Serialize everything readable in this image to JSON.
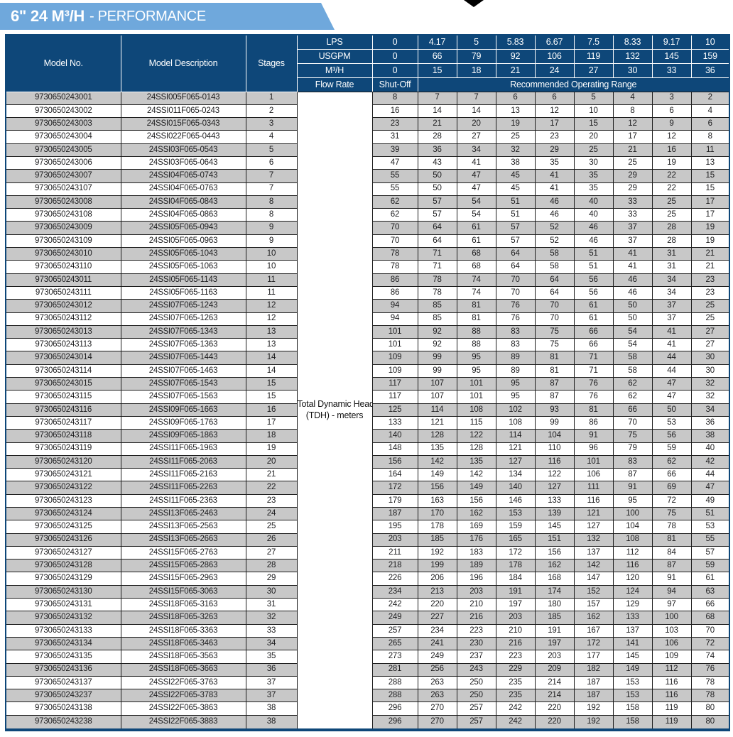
{
  "banner": {
    "title_strong": "6\" 24 M³/H",
    "title_light": "- PERFORMANCE"
  },
  "colors": {
    "navy": "#0E4779",
    "banner_blue": "#6FA8DC",
    "stripe_gray": "#C8C8C8"
  },
  "table": {
    "col_headers": {
      "model_no": "Model No.",
      "model_description": "Model Description",
      "stages": "Stages",
      "flow_rate": "Flow Rate",
      "shut_off": "Shut-Off",
      "recommended_range": "Recommended Operating Range"
    },
    "flow_rows": [
      {
        "label": "LPS",
        "values": [
          "0",
          "4.17",
          "5",
          "5.83",
          "6.67",
          "7.5",
          "8.33",
          "9.17",
          "10"
        ]
      },
      {
        "label": "USGPM",
        "values": [
          "0",
          "66",
          "79",
          "92",
          "106",
          "119",
          "132",
          "145",
          "159"
        ]
      },
      {
        "label": "M³/H",
        "values": [
          "0",
          "15",
          "18",
          "21",
          "24",
          "27",
          "30",
          "33",
          "36"
        ]
      }
    ],
    "tdh_label_line1": "Total Dynamic Head",
    "tdh_label_line2": "(TDH) - meters",
    "rows": [
      {
        "model": "9730650243001",
        "description": "24SSI005F065-0143",
        "stages": "1",
        "tdh": [
          8,
          7,
          7,
          6,
          6,
          5,
          4,
          3,
          2
        ]
      },
      {
        "model": "9730650243002",
        "description": "24SSI011F065-0243",
        "stages": "2",
        "tdh": [
          16,
          14,
          14,
          13,
          12,
          10,
          8,
          6,
          4
        ]
      },
      {
        "model": "9730650243003",
        "description": "24SSI015F065-0343",
        "stages": "3",
        "tdh": [
          23,
          21,
          20,
          19,
          17,
          15,
          12,
          9,
          6
        ]
      },
      {
        "model": "9730650243004",
        "description": "24SSI022F065-0443",
        "stages": "4",
        "tdh": [
          31,
          28,
          27,
          25,
          23,
          20,
          17,
          12,
          8
        ]
      },
      {
        "model": "9730650243005",
        "description": "24SSI03F065-0543",
        "stages": "5",
        "tdh": [
          39,
          36,
          34,
          32,
          29,
          25,
          21,
          16,
          11
        ]
      },
      {
        "model": "9730650243006",
        "description": "24SSI03F065-0643",
        "stages": "6",
        "tdh": [
          47,
          43,
          41,
          38,
          35,
          30,
          25,
          19,
          13
        ]
      },
      {
        "model": "9730650243007",
        "description": "24SSI04F065-0743",
        "stages": "7",
        "tdh": [
          55,
          50,
          47,
          45,
          41,
          35,
          29,
          22,
          15
        ]
      },
      {
        "model": "9730650243107",
        "description": "24SSI04F065-0763",
        "stages": "7",
        "tdh": [
          55,
          50,
          47,
          45,
          41,
          35,
          29,
          22,
          15
        ]
      },
      {
        "model": "9730650243008",
        "description": "24SSI04F065-0843",
        "stages": "8",
        "tdh": [
          62,
          57,
          54,
          51,
          46,
          40,
          33,
          25,
          17
        ]
      },
      {
        "model": "9730650243108",
        "description": "24SSI04F065-0863",
        "stages": "8",
        "tdh": [
          62,
          57,
          54,
          51,
          46,
          40,
          33,
          25,
          17
        ]
      },
      {
        "model": "9730650243009",
        "description": "24SSI05F065-0943",
        "stages": "9",
        "tdh": [
          70,
          64,
          61,
          57,
          52,
          46,
          37,
          28,
          19
        ]
      },
      {
        "model": "9730650243109",
        "description": "24SSI05F065-0963",
        "stages": "9",
        "tdh": [
          70,
          64,
          61,
          57,
          52,
          46,
          37,
          28,
          19
        ]
      },
      {
        "model": "9730650243010",
        "description": "24SSI05F065-1043",
        "stages": "10",
        "tdh": [
          78,
          71,
          68,
          64,
          58,
          51,
          41,
          31,
          21
        ]
      },
      {
        "model": "9730650243110",
        "description": "24SSI05F065-1063",
        "stages": "10",
        "tdh": [
          78,
          71,
          68,
          64,
          58,
          51,
          41,
          31,
          21
        ]
      },
      {
        "model": "9730650243011",
        "description": "24SSI05F065-1143",
        "stages": "11",
        "tdh": [
          86,
          78,
          74,
          70,
          64,
          56,
          46,
          34,
          23
        ]
      },
      {
        "model": "9730650243111",
        "description": "24SSI05F065-1163",
        "stages": "11",
        "tdh": [
          86,
          78,
          74,
          70,
          64,
          56,
          46,
          34,
          23
        ]
      },
      {
        "model": "9730650243012",
        "description": "24SSI07F065-1243",
        "stages": "12",
        "tdh": [
          94,
          85,
          81,
          76,
          70,
          61,
          50,
          37,
          25
        ]
      },
      {
        "model": "9730650243112",
        "description": "24SSI07F065-1263",
        "stages": "12",
        "tdh": [
          94,
          85,
          81,
          76,
          70,
          61,
          50,
          37,
          25
        ]
      },
      {
        "model": "9730650243013",
        "description": "24SSI07F065-1343",
        "stages": "13",
        "tdh": [
          101,
          92,
          88,
          83,
          75,
          66,
          54,
          41,
          27
        ]
      },
      {
        "model": "9730650243113",
        "description": "24SSI07F065-1363",
        "stages": "13",
        "tdh": [
          101,
          92,
          88,
          83,
          75,
          66,
          54,
          41,
          27
        ]
      },
      {
        "model": "9730650243014",
        "description": "24SSI07F065-1443",
        "stages": "14",
        "tdh": [
          109,
          99,
          95,
          89,
          81,
          71,
          58,
          44,
          30
        ]
      },
      {
        "model": "9730650243114",
        "description": "24SSI07F065-1463",
        "stages": "14",
        "tdh": [
          109,
          99,
          95,
          89,
          81,
          71,
          58,
          44,
          30
        ]
      },
      {
        "model": "9730650243015",
        "description": "24SSI07F065-1543",
        "stages": "15",
        "tdh": [
          117,
          107,
          101,
          95,
          87,
          76,
          62,
          47,
          32
        ]
      },
      {
        "model": "9730650243115",
        "description": "24SSI07F065-1563",
        "stages": "15",
        "tdh": [
          117,
          107,
          101,
          95,
          87,
          76,
          62,
          47,
          32
        ]
      },
      {
        "model": "9730650243116",
        "description": "24SSI09F065-1663",
        "stages": "16",
        "tdh": [
          125,
          114,
          108,
          102,
          93,
          81,
          66,
          50,
          34
        ]
      },
      {
        "model": "9730650243117",
        "description": "24SSI09F065-1763",
        "stages": "17",
        "tdh": [
          133,
          121,
          115,
          108,
          99,
          86,
          70,
          53,
          36
        ]
      },
      {
        "model": "9730650243118",
        "description": "24SSI09F065-1863",
        "stages": "18",
        "tdh": [
          140,
          128,
          122,
          114,
          104,
          91,
          75,
          56,
          38
        ]
      },
      {
        "model": "9730650243119",
        "description": "24SSI11F065-1963",
        "stages": "19",
        "tdh": [
          148,
          135,
          128,
          121,
          110,
          96,
          79,
          59,
          40
        ]
      },
      {
        "model": "9730650243120",
        "description": "24SSI11F065-2063",
        "stages": "20",
        "tdh": [
          156,
          142,
          135,
          127,
          116,
          101,
          83,
          62,
          42
        ]
      },
      {
        "model": "9730650243121",
        "description": "24SSI11F065-2163",
        "stages": "21",
        "tdh": [
          164,
          149,
          142,
          134,
          122,
          106,
          87,
          66,
          44
        ]
      },
      {
        "model": "9730650243122",
        "description": "24SSI11F065-2263",
        "stages": "22",
        "tdh": [
          172,
          156,
          149,
          140,
          127,
          111,
          91,
          69,
          47
        ]
      },
      {
        "model": "9730650243123",
        "description": "24SSI11F065-2363",
        "stages": "23",
        "tdh": [
          179,
          163,
          156,
          146,
          133,
          116,
          95,
          72,
          49
        ]
      },
      {
        "model": "9730650243124",
        "description": "24SSI13F065-2463",
        "stages": "24",
        "tdh": [
          187,
          170,
          162,
          153,
          139,
          121,
          100,
          75,
          51
        ]
      },
      {
        "model": "9730650243125",
        "description": "24SSI13F065-2563",
        "stages": "25",
        "tdh": [
          195,
          178,
          169,
          159,
          145,
          127,
          104,
          78,
          53
        ]
      },
      {
        "model": "9730650243126",
        "description": "24SSI13F065-2663",
        "stages": "26",
        "tdh": [
          203,
          185,
          176,
          165,
          151,
          132,
          108,
          81,
          55
        ]
      },
      {
        "model": "9730650243127",
        "description": "24SSI15F065-2763",
        "stages": "27",
        "tdh": [
          211,
          192,
          183,
          172,
          156,
          137,
          112,
          84,
          57
        ]
      },
      {
        "model": "9730650243128",
        "description": "24SSI15F065-2863",
        "stages": "28",
        "tdh": [
          218,
          199,
          189,
          178,
          162,
          142,
          116,
          87,
          59
        ]
      },
      {
        "model": "9730650243129",
        "description": "24SSI15F065-2963",
        "stages": "29",
        "tdh": [
          226,
          206,
          196,
          184,
          168,
          147,
          120,
          91,
          61
        ]
      },
      {
        "model": "9730650243130",
        "description": "24SSI15F065-3063",
        "stages": "30",
        "tdh": [
          234,
          213,
          203,
          191,
          174,
          152,
          124,
          94,
          63
        ]
      },
      {
        "model": "9730650243131",
        "description": "24SSI18F065-3163",
        "stages": "31",
        "tdh": [
          242,
          220,
          210,
          197,
          180,
          157,
          129,
          97,
          66
        ]
      },
      {
        "model": "9730650243132",
        "description": "24SSI18F065-3263",
        "stages": "32",
        "tdh": [
          249,
          227,
          216,
          203,
          185,
          162,
          133,
          100,
          68
        ]
      },
      {
        "model": "9730650243133",
        "description": "24SSI18F065-3363",
        "stages": "33",
        "tdh": [
          257,
          234,
          223,
          210,
          191,
          167,
          137,
          103,
          70
        ]
      },
      {
        "model": "9730650243134",
        "description": "24SSI18F065-3463",
        "stages": "34",
        "tdh": [
          265,
          241,
          230,
          216,
          197,
          172,
          141,
          106,
          72
        ]
      },
      {
        "model": "9730650243135",
        "description": "24SSI18F065-3563",
        "stages": "35",
        "tdh": [
          273,
          249,
          237,
          223,
          203,
          177,
          145,
          109,
          74
        ]
      },
      {
        "model": "9730650243136",
        "description": "24SSI18F065-3663",
        "stages": "36",
        "tdh": [
          281,
          256,
          243,
          229,
          209,
          182,
          149,
          112,
          76
        ]
      },
      {
        "model": "9730650243137",
        "description": "24SSI22F065-3763",
        "stages": "37",
        "tdh": [
          288,
          263,
          250,
          235,
          214,
          187,
          153,
          116,
          78
        ]
      },
      {
        "model": "9730650243237",
        "description": "24SSI22F065-3783",
        "stages": "37",
        "tdh": [
          288,
          263,
          250,
          235,
          214,
          187,
          153,
          116,
          78
        ]
      },
      {
        "model": "9730650243138",
        "description": "24SSI22F065-3863",
        "stages": "38",
        "tdh": [
          296,
          270,
          257,
          242,
          220,
          192,
          158,
          119,
          80
        ]
      },
      {
        "model": "9730650243238",
        "description": "24SSI22F065-3883",
        "stages": "38",
        "tdh": [
          296,
          270,
          257,
          242,
          220,
          192,
          158,
          119,
          80
        ]
      }
    ]
  }
}
